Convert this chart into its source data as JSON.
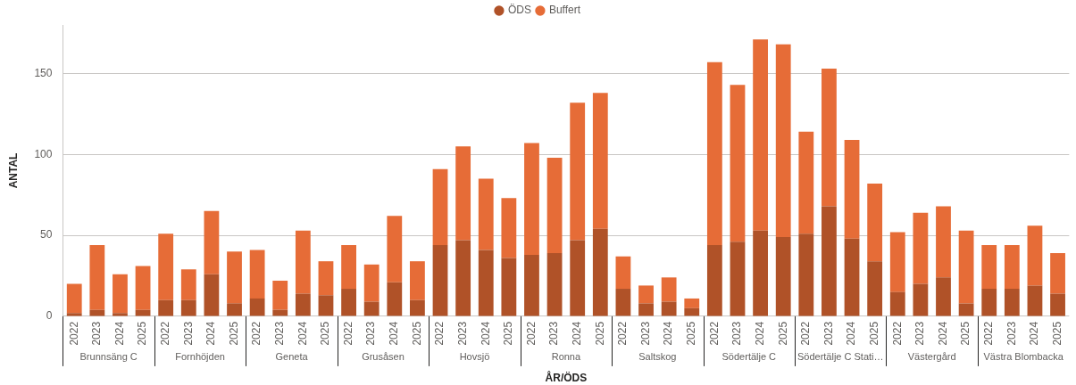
{
  "chart_data": {
    "type": "bar",
    "stacked": true,
    "xlabel": "ÅR/ÖDS",
    "ylabel": "ANTAL",
    "categories": [
      "2022",
      "2023",
      "2024",
      "2025",
      "2022",
      "2023",
      "2024",
      "2025",
      "2022",
      "2023",
      "2024",
      "2025",
      "2022",
      "2023",
      "2024",
      "2025",
      "2022",
      "2023",
      "2024",
      "2025",
      "2022",
      "2023",
      "2024",
      "2025",
      "2022",
      "2023",
      "2024",
      "2025",
      "2022",
      "2023",
      "2024",
      "2025",
      "2022",
      "2023",
      "2024",
      "2025",
      "2022",
      "2023",
      "2024",
      "2025",
      "2022",
      "2023",
      "2024",
      "2025"
    ],
    "annotations": [
      "Brunnsäng C",
      "Fornhöjden",
      "Geneta",
      "Grusåsen",
      "Hovsjö",
      "Ronna",
      "Saltskog",
      "Södertälje C",
      "Södertälje C Stati…",
      "Västergård",
      "Västra Blombacka"
    ],
    "series": [
      {
        "name": "ÖDS",
        "color": "#b05228",
        "values": [
          2,
          4,
          2,
          4,
          10,
          10,
          26,
          8,
          11,
          4,
          14,
          13,
          17,
          9,
          21,
          10,
          44,
          47,
          41,
          36,
          38,
          39,
          47,
          54,
          17,
          8,
          9,
          5,
          44,
          46,
          53,
          49,
          51,
          68,
          48,
          34,
          15,
          20,
          24,
          8,
          17,
          17,
          19,
          14
        ]
      },
      {
        "name": "Buffert",
        "color": "#e66c37",
        "values": [
          18,
          40,
          24,
          27,
          41,
          19,
          39,
          32,
          30,
          18,
          39,
          21,
          27,
          23,
          41,
          24,
          47,
          58,
          44,
          37,
          69,
          59,
          85,
          84,
          20,
          11,
          15,
          6,
          113,
          97,
          118,
          119,
          63,
          85,
          61,
          48,
          37,
          44,
          44,
          45,
          27,
          27,
          37,
          25
        ]
      }
    ],
    "ylim": [
      0,
      180
    ],
    "yticks": [
      0,
      50,
      100,
      150
    ],
    "grid": "y",
    "legend": "top",
    "marker": "circle"
  }
}
